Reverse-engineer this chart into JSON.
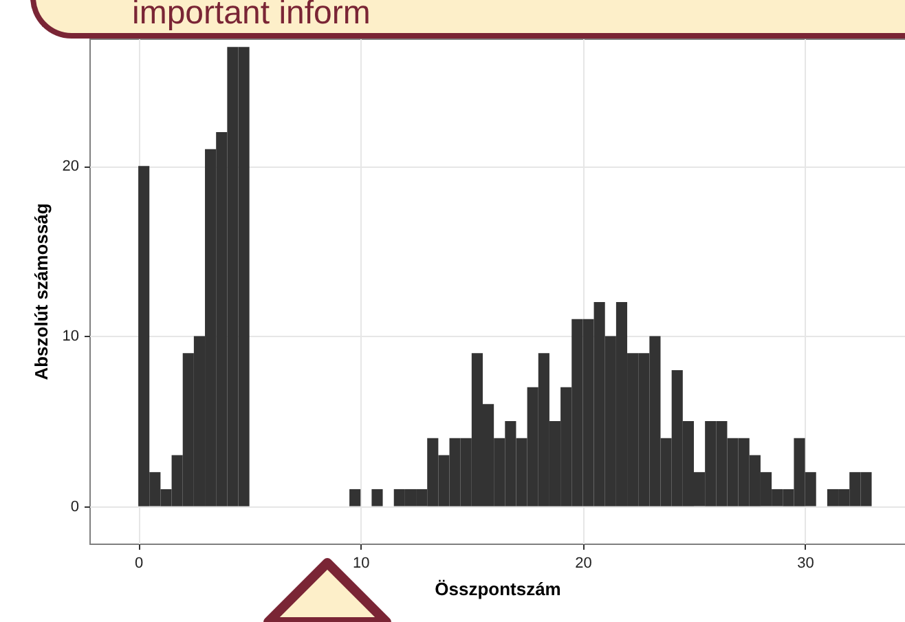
{
  "chart_data": {
    "type": "histogram",
    "xlabel": "Összpontszám",
    "ylabel": "Abszolút számosság",
    "annotations": [
      "important inform"
    ],
    "bins": [
      0,
      0.5,
      1,
      1.5,
      2,
      2.5,
      3,
      3.5,
      4,
      4.5,
      5,
      5.5,
      6,
      6.5,
      7,
      7.5,
      8,
      8.5,
      9,
      9.5,
      10,
      10.5,
      11,
      11.5,
      12,
      12.5,
      13,
      13.5,
      14,
      14.5,
      15,
      15.5,
      16,
      16.5,
      17,
      17.5,
      18,
      18.5,
      19,
      19.5,
      20,
      20.5,
      21,
      21.5,
      22,
      22.5,
      23,
      23.5,
      24,
      24.5,
      25,
      25.5,
      26,
      26.5,
      27,
      27.5,
      28,
      28.5,
      29,
      29.5,
      30,
      30.5,
      31,
      31.5,
      32,
      32.5,
      33
    ],
    "values": [
      20,
      2,
      1,
      3,
      9,
      10,
      21,
      22,
      27,
      27,
      0,
      0,
      0,
      0,
      0,
      0,
      0,
      0,
      0,
      1,
      0,
      1,
      0,
      1,
      1,
      1,
      4,
      3,
      4,
      4,
      9,
      6,
      4,
      5,
      4,
      7,
      9,
      5,
      7,
      11,
      11,
      12,
      10,
      12,
      9,
      9,
      10,
      4,
      8,
      5,
      2,
      5,
      5,
      4,
      4,
      3,
      2,
      1,
      1,
      4,
      2,
      0,
      1,
      1,
      2,
      2
    ],
    "color": "#333333",
    "xlim": [
      -2.2,
      34.5
    ],
    "ylim": [
      -2.2,
      27.5
    ],
    "xticks": [
      0,
      10,
      20,
      30
    ],
    "yticks": [
      0,
      10,
      20
    ],
    "grid": true
  }
}
